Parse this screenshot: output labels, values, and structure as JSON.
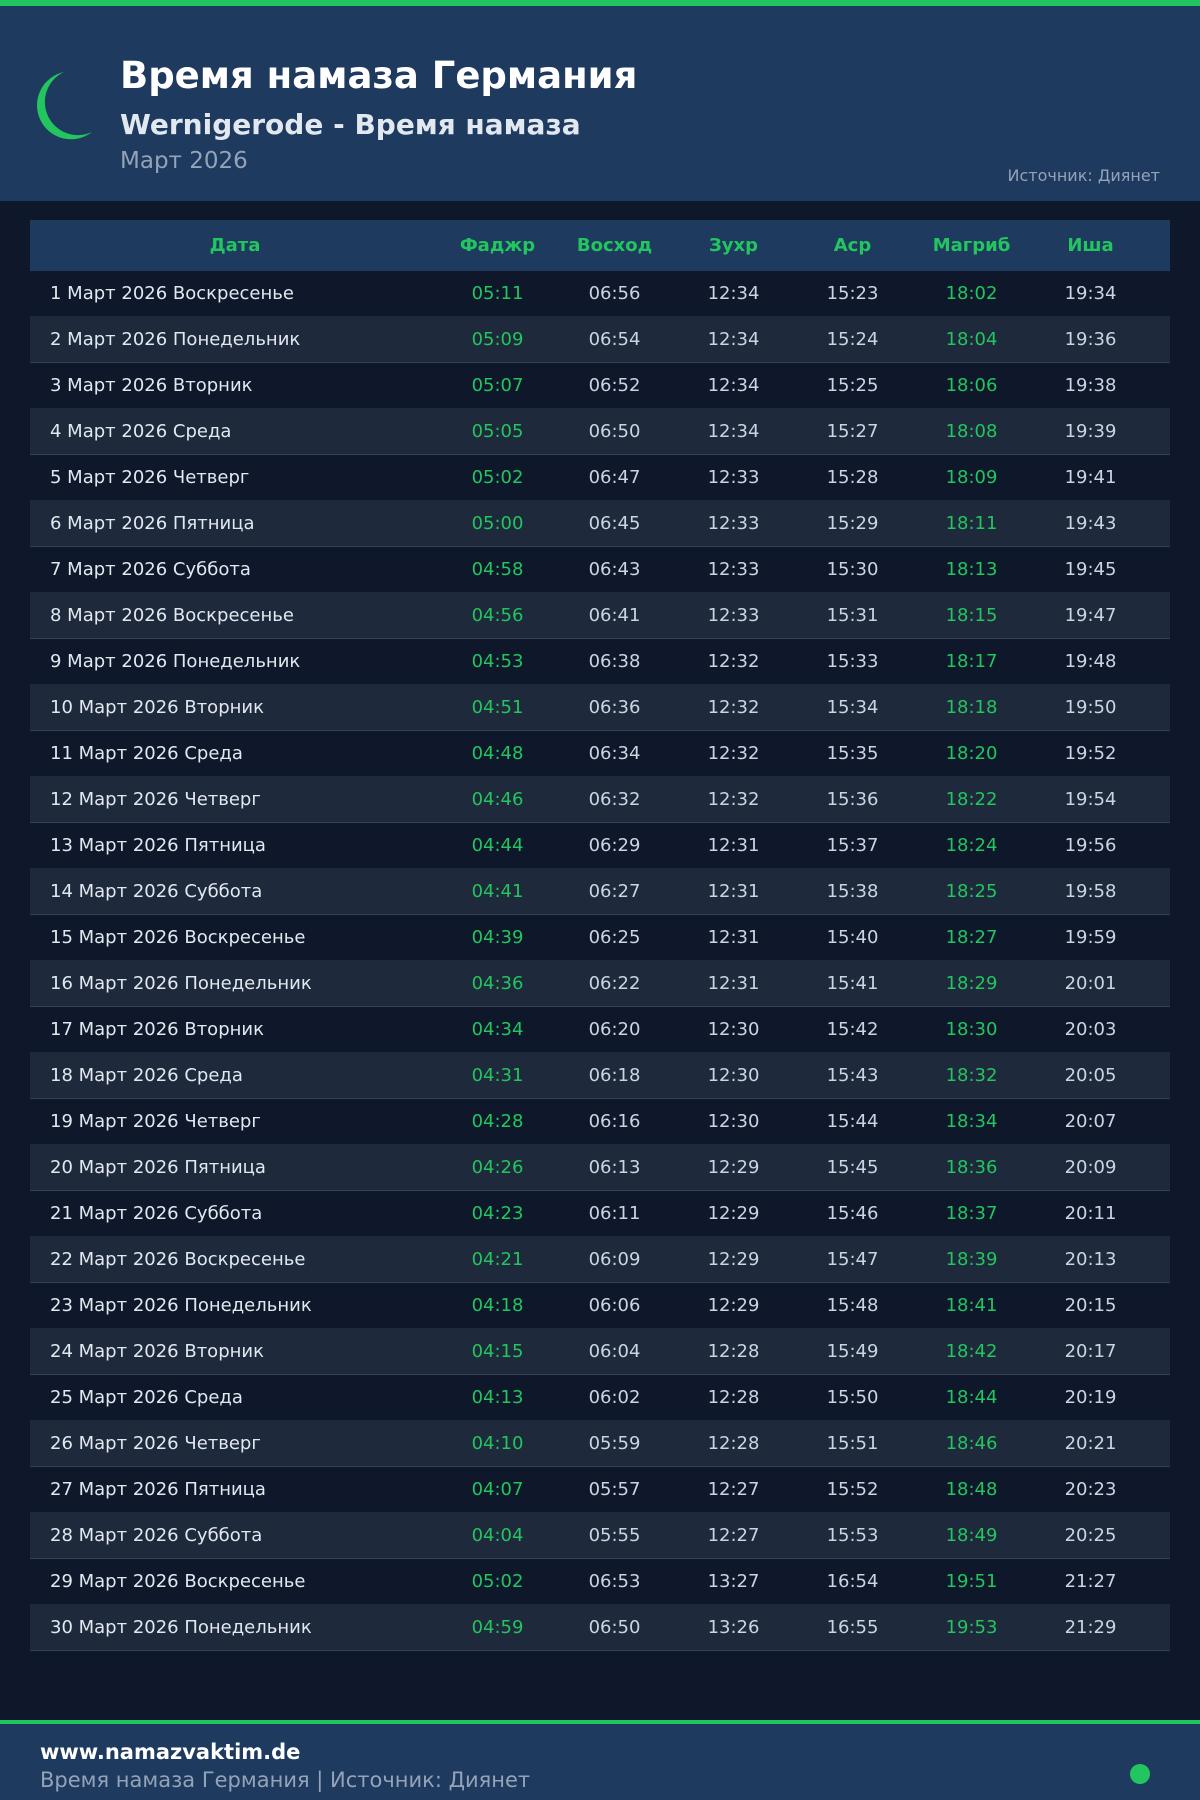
{
  "header": {
    "title": "Время намаза Германия",
    "subtitle": "Wernigerode - Время намаза",
    "month": "Март 2026",
    "source": "Источник: Диянет"
  },
  "colors": {
    "accent": "#22c55e",
    "header_bg": "#1e3a5f",
    "page_bg": "#0f172a"
  },
  "icons": {
    "logo": "crescent-moon-icon"
  },
  "table": {
    "columns": [
      "Дата",
      "Фаджр",
      "Восход",
      "Зухр",
      "Аср",
      "Магриб",
      "Иша"
    ],
    "rows": [
      [
        "1 Март 2026 Воскресенье",
        "05:11",
        "06:56",
        "12:34",
        "15:23",
        "18:02",
        "19:34"
      ],
      [
        "2 Март 2026 Понедельник",
        "05:09",
        "06:54",
        "12:34",
        "15:24",
        "18:04",
        "19:36"
      ],
      [
        "3 Март 2026 Вторник",
        "05:07",
        "06:52",
        "12:34",
        "15:25",
        "18:06",
        "19:38"
      ],
      [
        "4 Март 2026 Среда",
        "05:05",
        "06:50",
        "12:34",
        "15:27",
        "18:08",
        "19:39"
      ],
      [
        "5 Март 2026 Четверг",
        "05:02",
        "06:47",
        "12:33",
        "15:28",
        "18:09",
        "19:41"
      ],
      [
        "6 Март 2026 Пятница",
        "05:00",
        "06:45",
        "12:33",
        "15:29",
        "18:11",
        "19:43"
      ],
      [
        "7 Март 2026 Суббота",
        "04:58",
        "06:43",
        "12:33",
        "15:30",
        "18:13",
        "19:45"
      ],
      [
        "8 Март 2026 Воскресенье",
        "04:56",
        "06:41",
        "12:33",
        "15:31",
        "18:15",
        "19:47"
      ],
      [
        "9 Март 2026 Понедельник",
        "04:53",
        "06:38",
        "12:32",
        "15:33",
        "18:17",
        "19:48"
      ],
      [
        "10 Март 2026 Вторник",
        "04:51",
        "06:36",
        "12:32",
        "15:34",
        "18:18",
        "19:50"
      ],
      [
        "11 Март 2026 Среда",
        "04:48",
        "06:34",
        "12:32",
        "15:35",
        "18:20",
        "19:52"
      ],
      [
        "12 Март 2026 Четверг",
        "04:46",
        "06:32",
        "12:32",
        "15:36",
        "18:22",
        "19:54"
      ],
      [
        "13 Март 2026 Пятница",
        "04:44",
        "06:29",
        "12:31",
        "15:37",
        "18:24",
        "19:56"
      ],
      [
        "14 Март 2026 Суббота",
        "04:41",
        "06:27",
        "12:31",
        "15:38",
        "18:25",
        "19:58"
      ],
      [
        "15 Март 2026 Воскресенье",
        "04:39",
        "06:25",
        "12:31",
        "15:40",
        "18:27",
        "19:59"
      ],
      [
        "16 Март 2026 Понедельник",
        "04:36",
        "06:22",
        "12:31",
        "15:41",
        "18:29",
        "20:01"
      ],
      [
        "17 Март 2026 Вторник",
        "04:34",
        "06:20",
        "12:30",
        "15:42",
        "18:30",
        "20:03"
      ],
      [
        "18 Март 2026 Среда",
        "04:31",
        "06:18",
        "12:30",
        "15:43",
        "18:32",
        "20:05"
      ],
      [
        "19 Март 2026 Четверг",
        "04:28",
        "06:16",
        "12:30",
        "15:44",
        "18:34",
        "20:07"
      ],
      [
        "20 Март 2026 Пятница",
        "04:26",
        "06:13",
        "12:29",
        "15:45",
        "18:36",
        "20:09"
      ],
      [
        "21 Март 2026 Суббота",
        "04:23",
        "06:11",
        "12:29",
        "15:46",
        "18:37",
        "20:11"
      ],
      [
        "22 Март 2026 Воскресенье",
        "04:21",
        "06:09",
        "12:29",
        "15:47",
        "18:39",
        "20:13"
      ],
      [
        "23 Март 2026 Понедельник",
        "04:18",
        "06:06",
        "12:29",
        "15:48",
        "18:41",
        "20:15"
      ],
      [
        "24 Март 2026 Вторник",
        "04:15",
        "06:04",
        "12:28",
        "15:49",
        "18:42",
        "20:17"
      ],
      [
        "25 Март 2026 Среда",
        "04:13",
        "06:02",
        "12:28",
        "15:50",
        "18:44",
        "20:19"
      ],
      [
        "26 Март 2026 Четверг",
        "04:10",
        "05:59",
        "12:28",
        "15:51",
        "18:46",
        "20:21"
      ],
      [
        "27 Март 2026 Пятница",
        "04:07",
        "05:57",
        "12:27",
        "15:52",
        "18:48",
        "20:23"
      ],
      [
        "28 Март 2026 Суббота",
        "04:04",
        "05:55",
        "12:27",
        "15:53",
        "18:49",
        "20:25"
      ],
      [
        "29 Март 2026 Воскресенье",
        "05:02",
        "06:53",
        "13:27",
        "16:54",
        "19:51",
        "21:27"
      ],
      [
        "30 Март 2026 Понедельник",
        "04:59",
        "06:50",
        "13:26",
        "16:55",
        "19:53",
        "21:29"
      ]
    ]
  },
  "footer": {
    "site": "www.namazvaktim.de",
    "text": "Время намаза Германия | Источник: Диянет"
  }
}
